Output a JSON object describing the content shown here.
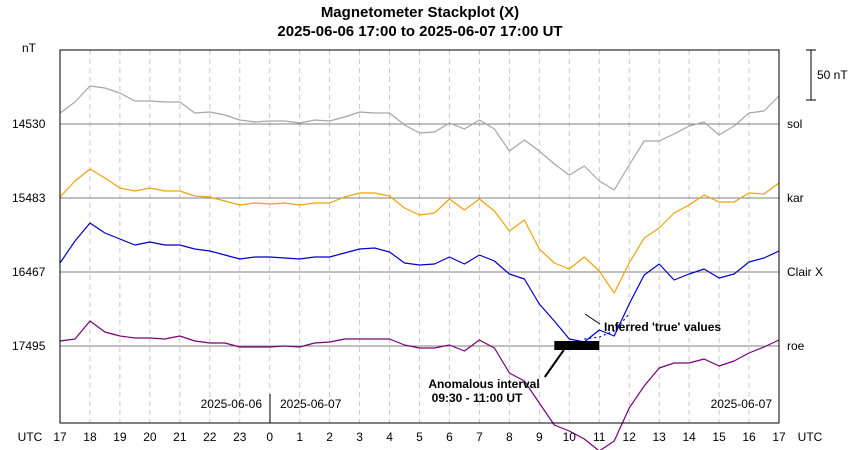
{
  "chart_data": {
    "type": "line",
    "title": "Magnetometer Stackplot (X)",
    "subtitle": "2025-06-06 17:00 to 2025-06-07 17:00 UT",
    "ylabel": "nT",
    "scale_bar_label": "50 nT",
    "x_unit_label": "UTC",
    "x_ticks": [
      "17",
      "18",
      "19",
      "20",
      "21",
      "22",
      "23",
      "0",
      "1",
      "2",
      "3",
      "4",
      "5",
      "6",
      "7",
      "8",
      "9",
      "10",
      "11",
      "12",
      "13",
      "14",
      "15",
      "16",
      "17"
    ],
    "date_labels": {
      "left_of_midnight": "2025-06-06",
      "right_of_midnight": "2025-06-07",
      "end": "2025-06-07"
    },
    "grid": "vertical dashed at each hour",
    "x_hours": [
      17,
      17.5,
      18,
      18.5,
      19,
      19.5,
      20,
      20.5,
      21,
      21.5,
      22,
      22.5,
      23,
      23.5,
      24,
      24.5,
      25,
      25.5,
      26,
      26.5,
      27,
      27.5,
      28,
      28.5,
      29,
      29.5,
      30,
      30.5,
      31,
      31.5,
      32,
      32.5,
      33,
      33.5,
      34,
      34.5,
      35,
      35.5,
      36,
      36.5,
      37,
      37.5,
      38,
      38.5,
      39,
      39.5,
      40,
      40.5,
      41
    ],
    "series": [
      {
        "name": "sol",
        "baseline_label": "14530",
        "color": "#a6a6a6",
        "values": [
          14541,
          14552,
          14568,
          14566,
          14561,
          14553,
          14553,
          14552,
          14552,
          14541,
          14542,
          14539,
          14534,
          14532,
          14533,
          14533,
          14531,
          14534,
          14533,
          14537,
          14542,
          14541,
          14541,
          14529,
          14521,
          14522,
          14531,
          14525,
          14534,
          14525,
          14503,
          14514,
          14503,
          14490,
          14479,
          14488,
          14473,
          14464,
          14489,
          14513,
          14513,
          14520,
          14528,
          14532,
          14519,
          14528,
          14541,
          14543,
          14558
        ]
      },
      {
        "name": "kar",
        "baseline_label": "15483",
        "color": "#f0a20b",
        "values": [
          15484,
          15500,
          15512,
          15503,
          15493,
          15490,
          15493,
          15490,
          15490,
          15485,
          15484,
          15480,
          15476,
          15478,
          15477,
          15478,
          15476,
          15478,
          15478,
          15484,
          15488,
          15488,
          15485,
          15473,
          15466,
          15468,
          15482,
          15471,
          15482,
          15470,
          15450,
          15461,
          15432,
          15418,
          15412,
          15424,
          15410,
          15388,
          15418,
          15443,
          15453,
          15468,
          15476,
          15486,
          15479,
          15479,
          15488,
          15487,
          15498
        ]
      },
      {
        "name": "Clair X",
        "baseline_label": "16467",
        "color": "#0000c8",
        "values": [
          16476,
          16498,
          16516,
          16506,
          16500,
          16494,
          16497,
          16494,
          16494,
          16490,
          16488,
          16484,
          16480,
          16482,
          16482,
          16481,
          16480,
          16482,
          16482,
          16486,
          16490,
          16491,
          16487,
          16476,
          16474,
          16475,
          16482,
          16475,
          16484,
          16478,
          16465,
          16460,
          16435,
          16418,
          16400,
          16397,
          16409,
          16403,
          16435,
          16464,
          16475,
          16459,
          16465,
          16470,
          16461,
          16465,
          16477,
          16481,
          16488
        ]
      },
      {
        "name": "roe",
        "baseline_label": "17495",
        "color": "#780078",
        "values": [
          17500,
          17502,
          17520,
          17509,
          17505,
          17503,
          17503,
          17502,
          17505,
          17500,
          17498,
          17498,
          17494,
          17494,
          17494,
          17495,
          17494,
          17498,
          17499,
          17502,
          17502,
          17502,
          17502,
          17496,
          17493,
          17493,
          17496,
          17490,
          17501,
          17493,
          17468,
          17460,
          17438,
          17416,
          17410,
          17402,
          17390,
          17400,
          17433,
          17455,
          17473,
          17478,
          17478,
          17482,
          17475,
          17480,
          17488,
          17494,
          17501
        ]
      }
    ],
    "inferred_series": {
      "parent": "Clair X",
      "values_x": [
        34.5,
        35.0,
        35.5,
        36.0
      ],
      "values": [
        16400,
        16402,
        16408,
        16425
      ]
    },
    "anomaly_interval": {
      "start_hour": 33.5,
      "end_hour": 35.0
    },
    "annotations": {
      "inferred": "Inferred 'true' values",
      "anomalous_line1": "Anomalous interval",
      "anomalous_line2": "09:30 - 11:00 UT"
    }
  }
}
